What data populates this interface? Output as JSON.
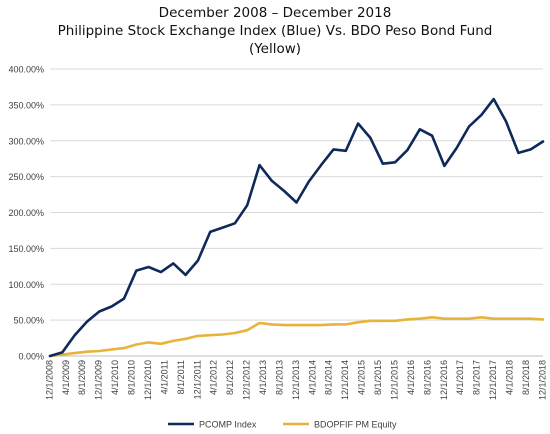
{
  "chart_data": {
    "type": "line",
    "title_lines": [
      "December 2008 – December 2018",
      "Philippine Stock Exchange Index (Blue) Vs. BDO Peso Bond Fund",
      "(Yellow)"
    ],
    "ylim": [
      0,
      400
    ],
    "y_ticks": [
      0,
      50,
      100,
      150,
      200,
      250,
      300,
      350,
      400
    ],
    "y_tick_labels": [
      "0.00%",
      "50.00%",
      "100.00%",
      "150.00%",
      "200.00%",
      "250.00%",
      "300.00%",
      "350.00%",
      "400.00%"
    ],
    "x_tick_labels": [
      "12/1/2008",
      "4/1/2009",
      "8/1/2009",
      "12/1/2009",
      "4/1/2010",
      "8/1/2010",
      "12/1/2010",
      "4/1/2011",
      "8/1/2011",
      "12/1/2011",
      "4/1/2012",
      "8/1/2012",
      "12/1/2012",
      "4/1/2013",
      "8/1/2013",
      "12/1/2013",
      "4/1/2014",
      "8/1/2014",
      "12/1/2014",
      "4/1/2015",
      "8/1/2015",
      "12/1/2015",
      "4/1/2016",
      "8/1/2016",
      "12/1/2016",
      "4/1/2017",
      "8/1/2017",
      "12/1/2017",
      "4/1/2018",
      "8/1/2018",
      "12/1/2018"
    ],
    "grid": true,
    "legend_position": "bottom",
    "series": [
      {
        "name": "PCOMP Index",
        "color": "#0d2a5b",
        "values": [
          0,
          5,
          29,
          48,
          62,
          69,
          80,
          119,
          124,
          117,
          129,
          113,
          133,
          173,
          179,
          185,
          210,
          266,
          244,
          230,
          214,
          243,
          266,
          288,
          286,
          324,
          304,
          268,
          270,
          287,
          316,
          307,
          265,
          290,
          320,
          336,
          358,
          327,
          283,
          288,
          299
        ]
      },
      {
        "name": "BDOPFIF PM Equity",
        "color": "#e8b33a",
        "values": [
          0,
          2,
          4,
          6,
          7,
          9,
          11,
          16,
          19,
          17,
          21,
          24,
          28,
          29,
          30,
          32,
          36,
          46,
          44,
          43,
          43,
          43,
          43,
          44,
          44,
          47,
          49,
          49,
          49,
          51,
          52,
          54,
          52,
          52,
          52,
          54,
          52,
          52,
          52,
          52,
          51
        ]
      }
    ]
  }
}
